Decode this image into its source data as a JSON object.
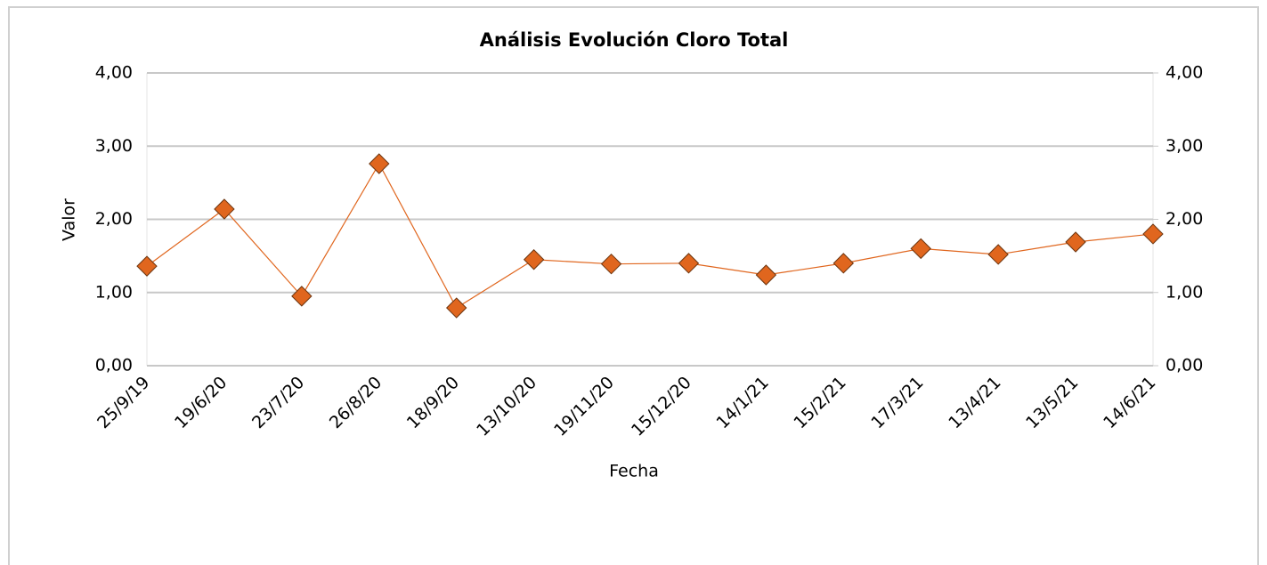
{
  "chart_data": {
    "type": "line",
    "title": "Análisis Evolución Cloro Total",
    "x_label": "Fecha",
    "y_label": "Valor",
    "categories": [
      "25/9/19",
      "19/6/20",
      "23/7/20",
      "26/8/20",
      "18/9/20",
      "13/10/20",
      "19/11/20",
      "15/12/20",
      "14/1/21",
      "15/2/21",
      "17/3/21",
      "13/4/21",
      "13/5/21",
      "14/6/21"
    ],
    "series": [
      {
        "name": "Valor",
        "color": "#e0661e",
        "marker_edge": "#6b3510",
        "marker": "diamond",
        "values": [
          1.36,
          2.14,
          0.95,
          2.76,
          0.79,
          1.45,
          1.39,
          1.4,
          1.24,
          1.4,
          1.6,
          1.52,
          1.69,
          1.8
        ]
      }
    ],
    "ylim": [
      0,
      4
    ],
    "yticks": [
      {
        "value": 0,
        "label": "0,00"
      },
      {
        "value": 1,
        "label": "1,00"
      },
      {
        "value": 2,
        "label": "2,00"
      },
      {
        "value": 3,
        "label": "3,00"
      },
      {
        "value": 4,
        "label": "4,00"
      }
    ],
    "y2lim": [
      0,
      4
    ],
    "y2ticks": [
      {
        "value": 0,
        "label": "0,00"
      },
      {
        "value": 1,
        "label": "1,00"
      },
      {
        "value": 2,
        "label": "2,00"
      },
      {
        "value": 3,
        "label": "3,00"
      },
      {
        "value": 4,
        "label": "4,00"
      }
    ],
    "grid": true,
    "legend": false
  }
}
